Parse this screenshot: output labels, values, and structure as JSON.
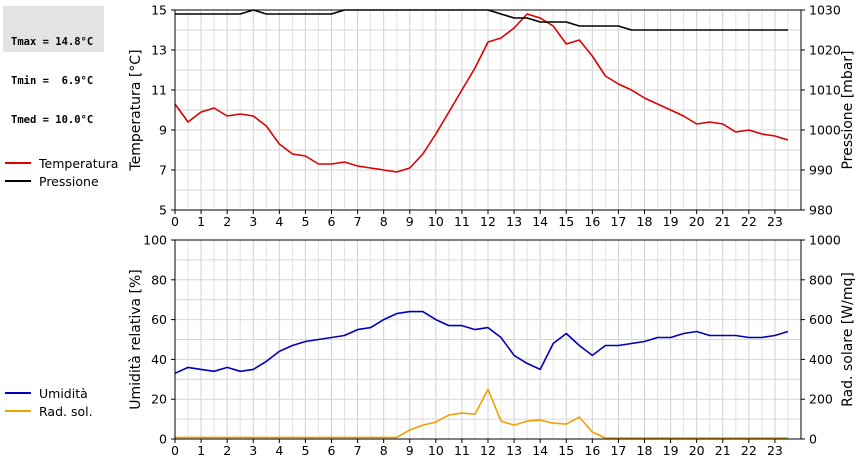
{
  "stats": {
    "lines": [
      "Tmax = 14.8°C",
      "Tmin =  6.9°C",
      "Tmed = 10.0°C"
    ]
  },
  "legend_top": [
    {
      "label": "Temperatura",
      "color": "#dd0000"
    },
    {
      "label": "Pressione",
      "color": "#000000"
    }
  ],
  "legend_bottom": [
    {
      "label": "Umidità",
      "color": "#0000bb"
    },
    {
      "label": "Rad. sol.",
      "color": "#f0a000"
    }
  ],
  "chart_data": [
    {
      "type": "line",
      "ylabel": "Temperatura [°C]",
      "y2label": "Pressione [mbar]",
      "xlim": [
        0,
        24
      ],
      "ylim": [
        5,
        15
      ],
      "y2lim": [
        980,
        1030
      ],
      "xticks": [
        0,
        1,
        2,
        3,
        4,
        5,
        6,
        7,
        8,
        9,
        10,
        11,
        12,
        13,
        14,
        15,
        16,
        17,
        18,
        19,
        20,
        21,
        22,
        23
      ],
      "yticks": [
        5,
        7,
        9,
        11,
        13,
        15
      ],
      "y2ticks": [
        980,
        990,
        1000,
        1010,
        1020,
        1030
      ],
      "grid": true,
      "series": [
        {
          "name": "Temperatura",
          "axis": "left",
          "color": "#dd0000",
          "x": [
            0,
            0.5,
            1,
            1.5,
            2,
            2.5,
            3,
            3.5,
            4,
            4.5,
            5,
            5.5,
            6,
            6.5,
            7,
            7.5,
            8,
            8.5,
            9,
            9.5,
            10,
            10.5,
            11,
            11.5,
            12,
            12.5,
            13,
            13.5,
            14,
            14.5,
            15,
            15.5,
            16,
            16.5,
            17,
            17.5,
            18,
            18.5,
            19,
            19.5,
            20,
            20.5,
            21,
            21.5,
            22,
            22.5,
            23,
            23.5
          ],
          "y": [
            10.3,
            9.4,
            9.9,
            10.1,
            9.7,
            9.8,
            9.7,
            9.2,
            8.3,
            7.8,
            7.7,
            7.3,
            7.3,
            7.4,
            7.2,
            7.1,
            7.0,
            6.9,
            7.1,
            7.8,
            8.8,
            9.9,
            11.0,
            12.1,
            13.4,
            13.6,
            14.1,
            14.8,
            14.6,
            14.2,
            13.3,
            13.5,
            12.7,
            11.7,
            11.3,
            11.0,
            10.6,
            10.3,
            10.0,
            9.7,
            9.3,
            9.4,
            9.3,
            8.9,
            9.0,
            8.8,
            8.7,
            8.5
          ]
        },
        {
          "name": "Pressione",
          "axis": "right",
          "color": "#000000",
          "x": [
            0,
            0.5,
            1,
            1.5,
            2,
            2.5,
            3,
            3.5,
            4,
            4.5,
            5,
            5.5,
            6,
            6.5,
            7,
            7.5,
            8,
            8.5,
            9,
            9.5,
            10,
            10.5,
            11,
            11.5,
            12,
            12.5,
            13,
            13.5,
            14,
            14.5,
            15,
            15.5,
            16,
            16.5,
            17,
            17.5,
            18,
            18.5,
            19,
            19.5,
            20,
            20.5,
            21,
            21.5,
            22,
            22.5,
            23,
            23.5
          ],
          "y": [
            1029,
            1029,
            1029,
            1029,
            1029,
            1029,
            1030,
            1029,
            1029,
            1029,
            1029,
            1029,
            1029,
            1030,
            1030,
            1030,
            1030,
            1030,
            1030,
            1030,
            1030,
            1030,
            1030,
            1030,
            1030,
            1029,
            1028,
            1028,
            1027,
            1027,
            1027,
            1026,
            1026,
            1026,
            1026,
            1025,
            1025,
            1025,
            1025,
            1025,
            1025,
            1025,
            1025,
            1025,
            1025,
            1025,
            1025,
            1025
          ]
        }
      ]
    },
    {
      "type": "line",
      "ylabel": "Umidità relativa [%]",
      "y2label": "Rad. solare [W/mq]",
      "xlim": [
        0,
        24
      ],
      "ylim": [
        0,
        100
      ],
      "y2lim": [
        0,
        1000
      ],
      "xticks": [
        0,
        1,
        2,
        3,
        4,
        5,
        6,
        7,
        8,
        9,
        10,
        11,
        12,
        13,
        14,
        15,
        16,
        17,
        18,
        19,
        20,
        21,
        22,
        23
      ],
      "yticks": [
        0,
        20,
        40,
        60,
        80,
        100
      ],
      "y2ticks": [
        0,
        200,
        400,
        600,
        800,
        1000
      ],
      "grid": true,
      "series": [
        {
          "name": "Umidità",
          "axis": "left",
          "color": "#0000bb",
          "x": [
            0,
            0.5,
            1,
            1.5,
            2,
            2.5,
            3,
            3.5,
            4,
            4.5,
            5,
            5.5,
            6,
            6.5,
            7,
            7.5,
            8,
            8.5,
            9,
            9.5,
            10,
            10.5,
            11,
            11.5,
            12,
            12.5,
            13,
            13.5,
            14,
            14.5,
            15,
            15.5,
            16,
            16.5,
            17,
            17.5,
            18,
            18.5,
            19,
            19.5,
            20,
            20.5,
            21,
            21.5,
            22,
            22.5,
            23,
            23.5
          ],
          "y": [
            33,
            36,
            35,
            34,
            36,
            34,
            35,
            39,
            44,
            47,
            49,
            50,
            51,
            52,
            55,
            56,
            60,
            63,
            64,
            64,
            60,
            57,
            57,
            55,
            56,
            51,
            42,
            38,
            35,
            48,
            53,
            47,
            42,
            47,
            47,
            48,
            49,
            51,
            51,
            53,
            54,
            52,
            52,
            52,
            51,
            51,
            52,
            54
          ]
        },
        {
          "name": "Rad. sol.",
          "axis": "right",
          "color": "#f0a000",
          "x": [
            0,
            0.5,
            1,
            1.5,
            2,
            2.5,
            3,
            3.5,
            4,
            4.5,
            5,
            5.5,
            6,
            6.5,
            7,
            7.5,
            8,
            8.5,
            9,
            9.5,
            10,
            10.5,
            11,
            11.5,
            12,
            12.5,
            13,
            13.5,
            14,
            14.5,
            15,
            15.5,
            16,
            16.5,
            17,
            17.5,
            18,
            18.5,
            19,
            19.5,
            20,
            20.5,
            21,
            21.5,
            22,
            22.5,
            23,
            23.5
          ],
          "y": [
            8,
            8,
            8,
            8,
            8,
            8,
            8,
            8,
            8,
            8,
            8,
            8,
            8,
            8,
            8,
            8,
            8,
            8,
            45,
            70,
            85,
            120,
            130,
            125,
            250,
            90,
            70,
            90,
            95,
            80,
            75,
            110,
            35,
            5,
            5,
            5,
            5,
            5,
            5,
            5,
            5,
            5,
            5,
            5,
            5,
            5,
            5,
            5
          ]
        }
      ]
    }
  ]
}
